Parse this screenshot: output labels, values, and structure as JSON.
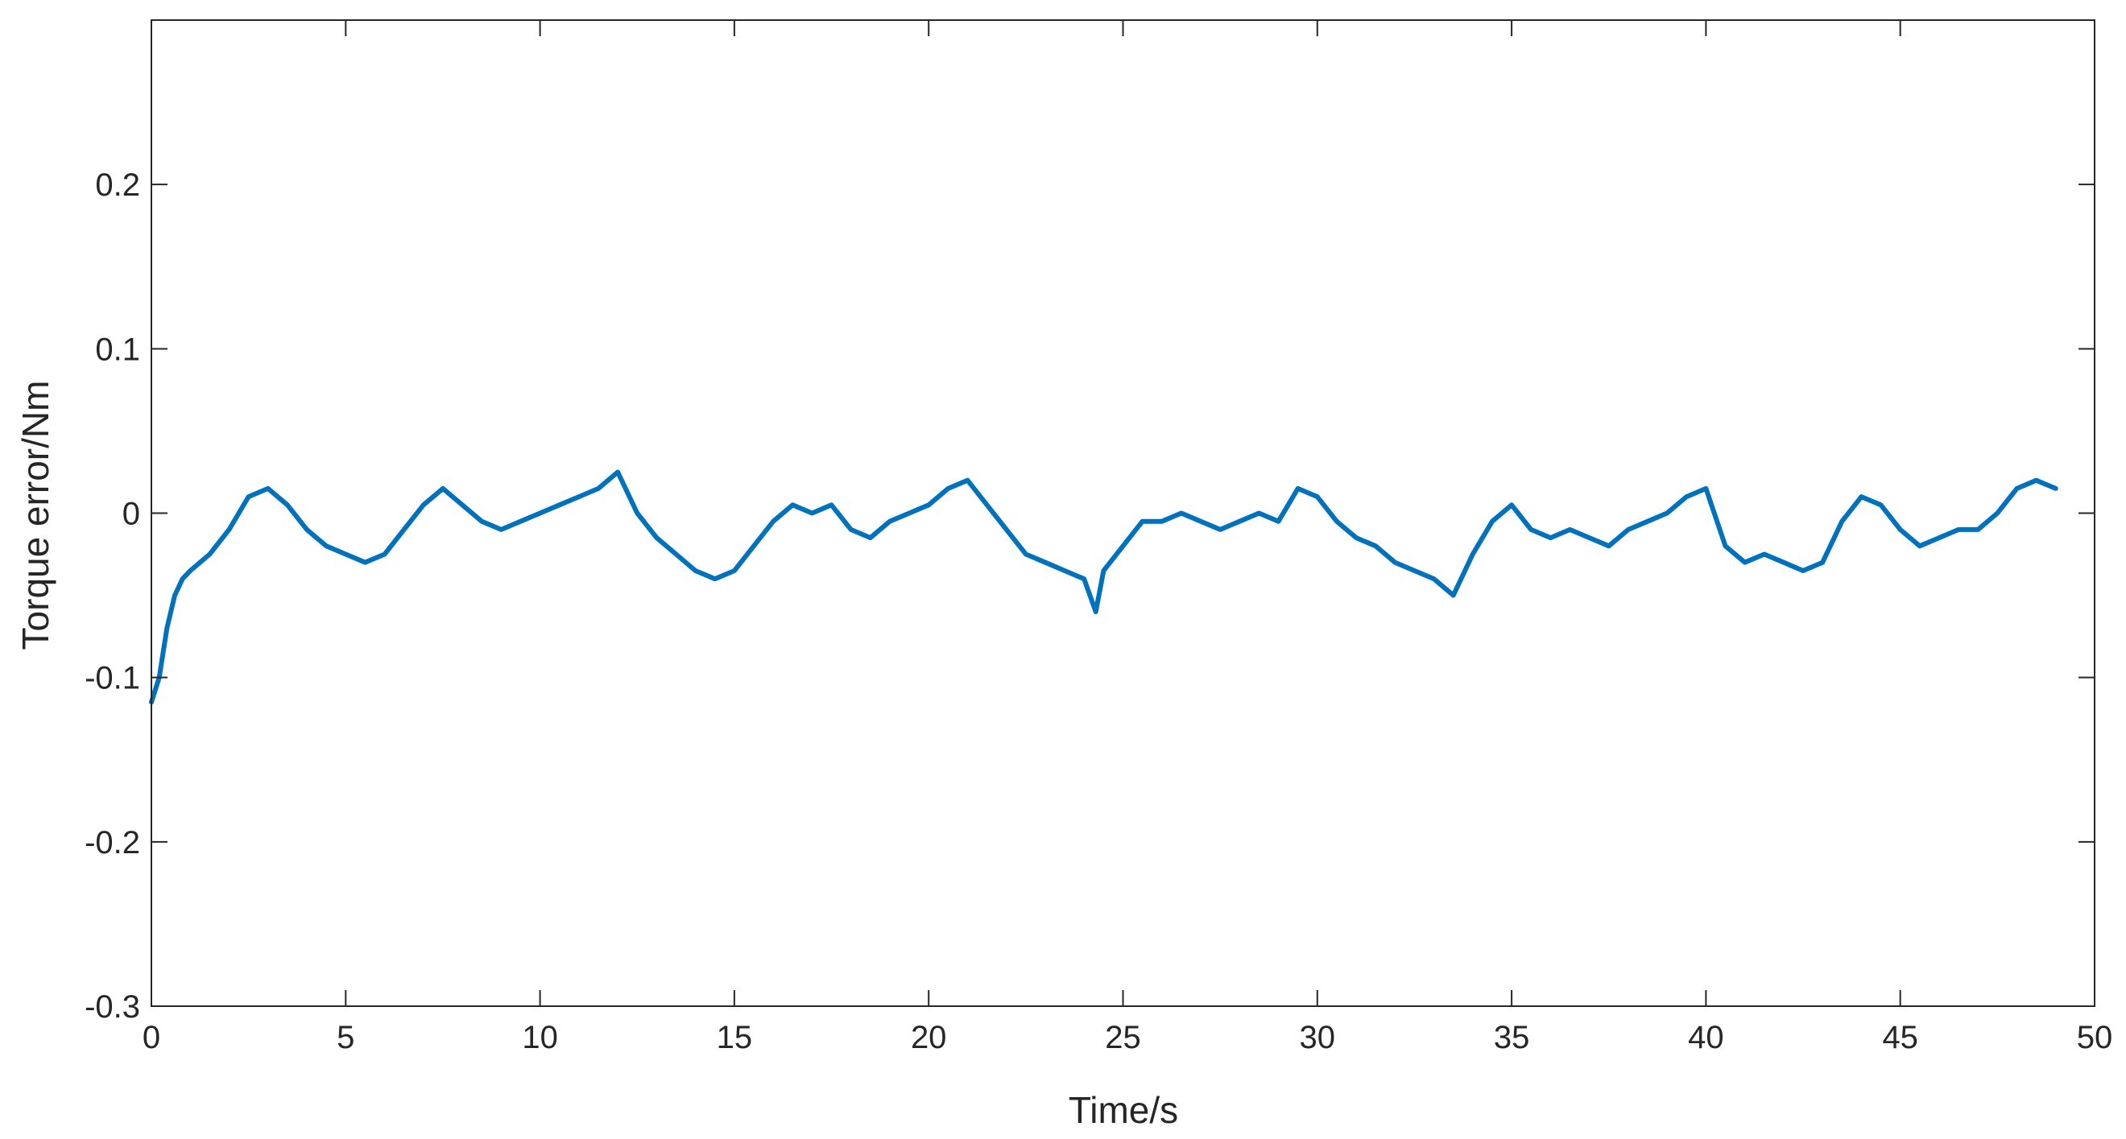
{
  "chart_data": {
    "type": "line",
    "title": "",
    "xlabel": "Time/s",
    "ylabel": "Torque error/Nm",
    "xlim": [
      0,
      50
    ],
    "ylim": [
      -0.3,
      0.3
    ],
    "xticks": [
      0,
      5,
      10,
      15,
      20,
      25,
      30,
      35,
      40,
      45,
      50
    ],
    "yticks": [
      -0.3,
      -0.2,
      -0.1,
      0,
      0.1,
      0.2
    ],
    "xtick_labels": [
      "0",
      "5",
      "10",
      "15",
      "20",
      "25",
      "30",
      "35",
      "40",
      "45",
      "50"
    ],
    "ytick_labels": [
      "-0.3",
      "-0.2",
      "-0.1",
      "0",
      "0.1",
      "0.2"
    ],
    "grid": false,
    "box": true,
    "series": [
      {
        "color": "#0072BD",
        "x": [
          0,
          0.2,
          0.4,
          0.6,
          0.8,
          1.0,
          1.5,
          2.0,
          2.5,
          3.0,
          3.5,
          4.0,
          4.5,
          5.0,
          5.5,
          6.0,
          6.5,
          7.0,
          7.5,
          8.0,
          8.5,
          9.0,
          9.5,
          10.0,
          10.5,
          11.0,
          11.5,
          12.0,
          12.5,
          13.0,
          13.5,
          14.0,
          14.5,
          15.0,
          15.5,
          16.0,
          16.5,
          17.0,
          17.5,
          18.0,
          18.5,
          19.0,
          19.5,
          20.0,
          20.5,
          21.0,
          21.5,
          22.0,
          22.5,
          23.0,
          23.5,
          24.0,
          24.3,
          24.5,
          25.0,
          25.5,
          26.0,
          26.5,
          27.0,
          27.5,
          28.0,
          28.5,
          29.0,
          29.5,
          30.0,
          30.5,
          31.0,
          31.5,
          32.0,
          32.5,
          33.0,
          33.5,
          34.0,
          34.5,
          35.0,
          35.5,
          36.0,
          36.5,
          37.0,
          37.5,
          38.0,
          38.5,
          39.0,
          39.5,
          40.0,
          40.5,
          41.0,
          41.5,
          42.0,
          42.5,
          43.0,
          43.5,
          44.0,
          44.5,
          45.0,
          45.5,
          46.0,
          46.5,
          47.0,
          47.5,
          48.0,
          48.5,
          49.0
        ],
        "y": [
          -0.115,
          -0.1,
          -0.07,
          -0.05,
          -0.04,
          -0.035,
          -0.025,
          -0.01,
          0.01,
          0.015,
          0.005,
          -0.01,
          -0.02,
          -0.025,
          -0.03,
          -0.025,
          -0.01,
          0.005,
          0.015,
          0.005,
          -0.005,
          -0.01,
          -0.005,
          0.0,
          0.005,
          0.01,
          0.015,
          0.025,
          0.0,
          -0.015,
          -0.025,
          -0.035,
          -0.04,
          -0.035,
          -0.02,
          -0.005,
          0.005,
          0.0,
          0.005,
          -0.01,
          -0.015,
          -0.005,
          0.0,
          0.005,
          0.015,
          0.02,
          0.005,
          -0.01,
          -0.025,
          -0.03,
          -0.035,
          -0.04,
          -0.06,
          -0.035,
          -0.02,
          -0.005,
          -0.005,
          0.0,
          -0.005,
          -0.01,
          -0.005,
          0.0,
          -0.005,
          0.015,
          0.01,
          -0.005,
          -0.015,
          -0.02,
          -0.03,
          -0.035,
          -0.04,
          -0.05,
          -0.025,
          -0.005,
          0.005,
          -0.01,
          -0.015,
          -0.01,
          -0.015,
          -0.02,
          -0.01,
          -0.005,
          0.0,
          0.01,
          0.015,
          -0.02,
          -0.03,
          -0.025,
          -0.03,
          -0.035,
          -0.03,
          -0.005,
          0.01,
          0.005,
          -0.01,
          -0.02,
          -0.015,
          -0.01,
          -0.01,
          0.0,
          0.015,
          0.02,
          0.015
        ]
      }
    ]
  }
}
